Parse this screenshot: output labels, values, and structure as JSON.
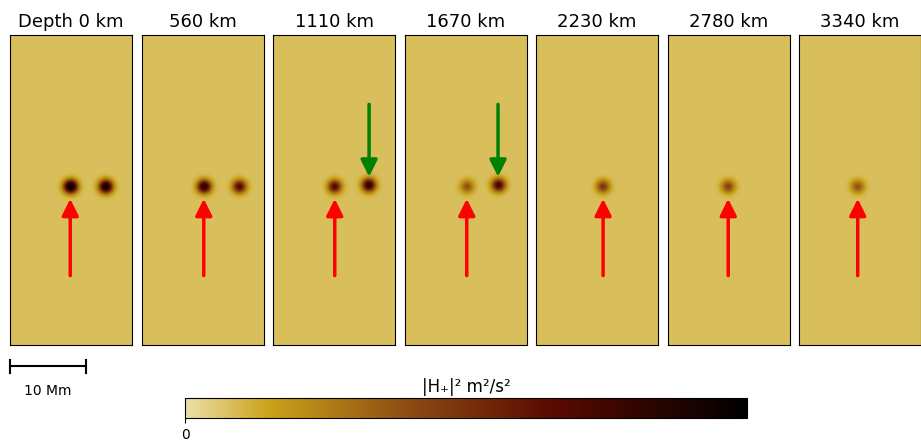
{
  "chart_data": [
    {
      "type": "heatmap",
      "title": "Depth 0 km",
      "xlim": [
        0,
        16
      ],
      "ylim": [
        0,
        42
      ],
      "tick_labels": false,
      "background": 0.08,
      "spots": [
        {
          "x": 7.9,
          "y": 21.4,
          "value": 1.0,
          "marker": "arrow_up",
          "color": "red"
        },
        {
          "x": 12.5,
          "y": 21.4,
          "value": 0.9
        }
      ]
    },
    {
      "type": "heatmap",
      "title": "560 km",
      "xlim": [
        0,
        16
      ],
      "ylim": [
        0,
        42
      ],
      "tick_labels": false,
      "background": 0.08,
      "spots": [
        {
          "x": 8.1,
          "y": 21.4,
          "value": 0.8,
          "marker": "arrow_up",
          "color": "red"
        },
        {
          "x": 12.7,
          "y": 21.4,
          "value": 0.6
        }
      ]
    },
    {
      "type": "heatmap",
      "title": "1110 km",
      "xlim": [
        0,
        16
      ],
      "ylim": [
        0,
        42
      ],
      "tick_labels": false,
      "background": 0.08,
      "spots": [
        {
          "x": 8.1,
          "y": 21.4,
          "value": 0.6,
          "marker": "arrow_up",
          "color": "red"
        },
        {
          "x": 12.6,
          "y": 21.6,
          "value": 0.75,
          "marker": "arrow_down",
          "color": "green"
        }
      ]
    },
    {
      "type": "heatmap",
      "title": "1670 km",
      "xlim": [
        0,
        16
      ],
      "ylim": [
        0,
        42
      ],
      "tick_labels": false,
      "background": 0.08,
      "spots": [
        {
          "x": 8.1,
          "y": 21.4,
          "value": 0.3,
          "marker": "arrow_up",
          "color": "red"
        },
        {
          "x": 12.2,
          "y": 21.6,
          "value": 0.65,
          "marker": "arrow_down",
          "color": "green"
        }
      ]
    },
    {
      "type": "heatmap",
      "title": "2230 km",
      "xlim": [
        0,
        16
      ],
      "ylim": [
        0,
        42
      ],
      "tick_labels": false,
      "background": 0.08,
      "spots": [
        {
          "x": 8.8,
          "y": 21.4,
          "value": 0.4,
          "marker": "arrow_up",
          "color": "red"
        }
      ]
    },
    {
      "type": "heatmap",
      "title": "2780 km",
      "xlim": [
        0,
        16
      ],
      "ylim": [
        0,
        42
      ],
      "tick_labels": false,
      "background": 0.08,
      "spots": [
        {
          "x": 7.9,
          "y": 21.4,
          "value": 0.35,
          "marker": "arrow_up",
          "color": "red"
        }
      ]
    },
    {
      "type": "heatmap",
      "title": "3340 km",
      "xlim": [
        0,
        16
      ],
      "ylim": [
        0,
        42
      ],
      "tick_labels": false,
      "background": 0.08,
      "spots": [
        {
          "x": 7.7,
          "y": 21.4,
          "value": 0.3,
          "marker": "arrow_up",
          "color": "red"
        }
      ]
    }
  ],
  "colorbar": {
    "label": "|H₊|² m²/s²",
    "range": [
      0,
      1
    ],
    "ticks": [
      0
    ]
  },
  "scale_bar": {
    "length": 10,
    "label": "10 Mm"
  }
}
